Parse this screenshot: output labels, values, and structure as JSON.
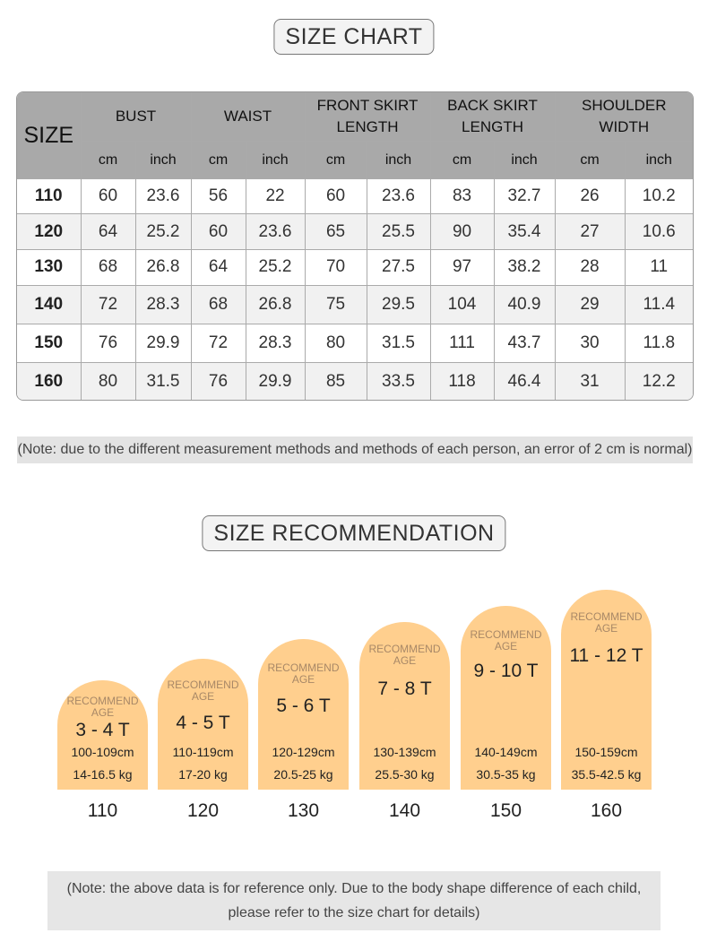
{
  "size_chart": {
    "title": "SIZE CHART",
    "size_label": "SIZE",
    "groups": [
      {
        "line1": "BUST",
        "line2": ""
      },
      {
        "line1": "WAIST",
        "line2": ""
      },
      {
        "line1": "FRONT SKIRT",
        "line2": "LENGTH"
      },
      {
        "line1": "BACK SKIRT",
        "line2": "LENGTH"
      },
      {
        "line1": "SHOULDER",
        "line2": "WIDTH"
      }
    ],
    "unit_cm": "cm",
    "unit_inch": "inch",
    "rows": [
      [
        "110",
        "60",
        "23.6",
        "56",
        "22",
        "60",
        "23.6",
        "83",
        "32.7",
        "26",
        "10.2"
      ],
      [
        "120",
        "64",
        "25.2",
        "60",
        "23.6",
        "65",
        "25.5",
        "90",
        "35.4",
        "27",
        "10.6"
      ],
      [
        "130",
        "68",
        "26.8",
        "64",
        "25.2",
        "70",
        "27.5",
        "97",
        "38.2",
        "28",
        "11"
      ],
      [
        "140",
        "72",
        "28.3",
        "68",
        "26.8",
        "75",
        "29.5",
        "104",
        "40.9",
        "29",
        "11.4"
      ],
      [
        "150",
        "76",
        "29.9",
        "72",
        "28.3",
        "80",
        "31.5",
        "111",
        "43.7",
        "30",
        "11.8"
      ],
      [
        "160",
        "80",
        "31.5",
        "76",
        "29.9",
        "85",
        "33.5",
        "118",
        "46.4",
        "31",
        "12.2"
      ]
    ],
    "note": "(Note: due to the different measurement methods and methods of each person, an error of 2 cm is normal)"
  },
  "size_recommendation": {
    "title": "SIZE RECOMMENDATION",
    "recommend_line1": "RECOMMEND",
    "recommend_line2": "AGE",
    "cards": [
      {
        "age": "3 - 4 T",
        "height": "100-109cm",
        "weight": "14-16.5 kg",
        "size": "110"
      },
      {
        "age": "4 - 5 T",
        "height": "110-119cm",
        "weight": "17-20 kg",
        "size": "120"
      },
      {
        "age": "5 - 6 T",
        "height": "120-129cm",
        "weight": "20.5-25 kg",
        "size": "130"
      },
      {
        "age": "7 - 8 T",
        "height": "130-139cm",
        "weight": "25.5-30 kg",
        "size": "140"
      },
      {
        "age": "9 - 10 T",
        "height": "140-149cm",
        "weight": "30.5-35 kg",
        "size": "150"
      },
      {
        "age": "11 - 12 T",
        "height": "150-159cm",
        "weight": "35.5-42.5 kg",
        "size": "160"
      }
    ],
    "note_line1": "(Note: the above data is for reference only. Due to the body shape difference of each child,",
    "note_line2": "please refer to the size chart for details)"
  },
  "colors": {
    "card_fill": "#ffcf8e",
    "header_gray": "#a9a9a9",
    "note_bg": "#e3e3e3"
  }
}
